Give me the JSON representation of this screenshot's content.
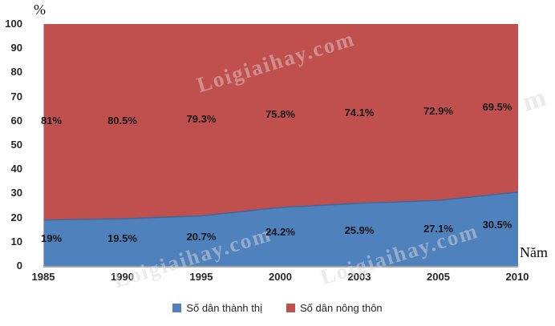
{
  "chart_data": {
    "type": "area",
    "stacked": true,
    "title": "",
    "ylabel": "%",
    "xlabel": "Năm",
    "categories": [
      "1985",
      "1990",
      "1995",
      "2000",
      "2003",
      "2005",
      "2010"
    ],
    "series": [
      {
        "name": "Số dân thành thị",
        "color": "#4f81bd",
        "edge_color": "#3f6899",
        "values": [
          19,
          19.5,
          20.7,
          24.2,
          25.9,
          27.1,
          30.5
        ],
        "labels": [
          "19%",
          "19.5%",
          "20.7%",
          "24.2%",
          "25.9%",
          "27.1%",
          "30.5%"
        ]
      },
      {
        "name": "Số dân nông thôn",
        "color": "#c0504d",
        "edge_color": "#c0504d",
        "values": [
          81,
          80.5,
          79.3,
          75.8,
          74.1,
          72.9,
          69.5
        ],
        "labels": [
          "81%",
          "80.5%",
          "79.3%",
          "75.8%",
          "74.1%",
          "72.9%",
          "69.5%"
        ]
      }
    ],
    "ylim": [
      0,
      100
    ],
    "yticks": [
      0,
      10,
      20,
      30,
      40,
      50,
      60,
      70,
      80,
      90,
      100
    ],
    "grid": false,
    "legend_position": "bottom"
  },
  "watermarks": [
    "Loigiaihay.com",
    "Loigiaihay.com",
    "Loigiaihay.com",
    "m"
  ]
}
